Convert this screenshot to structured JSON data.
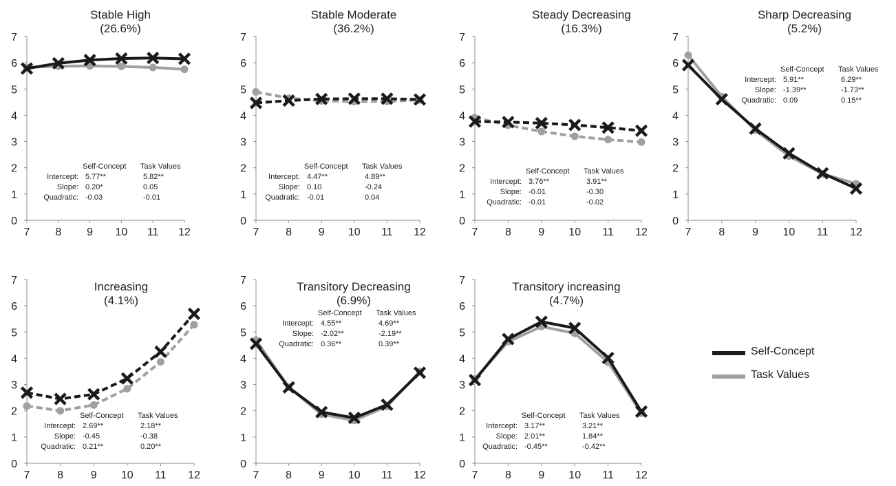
{
  "chart_data": [
    {
      "type": "line",
      "title": "Stable High",
      "subtitle": "(26.6%)",
      "x": [
        7,
        8,
        9,
        10,
        11,
        12
      ],
      "ylim": [
        0,
        7
      ],
      "yticks": [
        0,
        1,
        2,
        3,
        4,
        5,
        6,
        7
      ],
      "series": [
        {
          "name": "Self-Concept",
          "values": [
            5.78,
            5.98,
            6.1,
            6.16,
            6.18,
            6.15
          ]
        },
        {
          "name": "Task Values",
          "values": [
            5.82,
            5.87,
            5.88,
            5.86,
            5.82,
            5.75
          ]
        }
      ],
      "estimates_table": {
        "headers": [
          "Self-Concept",
          "Task Values"
        ],
        "rows": [
          {
            "label": "Intercept:",
            "values": [
              "5.77**",
              "5.82**"
            ]
          },
          {
            "label": "Slope:",
            "values": [
              "0.20*",
              "0.05"
            ]
          },
          {
            "label": "Quadratic:",
            "values": [
              "-0.03",
              "-0.01"
            ]
          }
        ]
      }
    },
    {
      "type": "line",
      "title": "Stable Moderate",
      "subtitle": "(36.2%)",
      "x": [
        7,
        8,
        9,
        10,
        11,
        12
      ],
      "ylim": [
        0,
        7
      ],
      "yticks": [
        0,
        1,
        2,
        3,
        4,
        5,
        6,
        7
      ],
      "series": [
        {
          "name": "Self-Concept",
          "values": [
            4.47,
            4.56,
            4.62,
            4.63,
            4.63,
            4.6
          ]
        },
        {
          "name": "Task Values",
          "values": [
            4.89,
            4.65,
            4.55,
            4.52,
            4.53,
            4.58
          ]
        }
      ],
      "estimates_table": {
        "headers": [
          "Self-Concept",
          "Task Values"
        ],
        "rows": [
          {
            "label": "Intercept:",
            "values": [
              "4.47**",
              "4.89**"
            ]
          },
          {
            "label": "Slope:",
            "values": [
              "0.10",
              "-0.24"
            ]
          },
          {
            "label": "Quadratic:",
            "values": [
              "-0.01",
              "0.04"
            ]
          }
        ]
      }
    },
    {
      "type": "line",
      "title": "Steady Decreasing",
      "subtitle": "(16.3%)",
      "x": [
        7,
        8,
        9,
        10,
        11,
        12
      ],
      "ylim": [
        0,
        7
      ],
      "yticks": [
        0,
        1,
        2,
        3,
        4,
        5,
        6,
        7
      ],
      "series": [
        {
          "name": "Self-Concept",
          "values": [
            3.76,
            3.74,
            3.7,
            3.63,
            3.53,
            3.41
          ]
        },
        {
          "name": "Task Values",
          "values": [
            3.91,
            3.62,
            3.38,
            3.2,
            3.07,
            2.98
          ]
        }
      ],
      "estimates_table": {
        "headers": [
          "Self-Concept",
          "Task Values"
        ],
        "rows": [
          {
            "label": "Intercept:",
            "values": [
              "3.76**",
              "3.91**"
            ]
          },
          {
            "label": "Slope:",
            "values": [
              "-0.01",
              "-0.30"
            ]
          },
          {
            "label": "Quadratic:",
            "values": [
              "-0.01",
              "-0.02"
            ]
          }
        ]
      }
    },
    {
      "type": "line",
      "title": "Sharp Decreasing",
      "subtitle": "(5.2%)",
      "x": [
        7,
        8,
        9,
        10,
        11,
        12
      ],
      "ylim": [
        0,
        7
      ],
      "yticks": [
        0,
        1,
        2,
        3,
        4,
        5,
        6,
        7
      ],
      "series": [
        {
          "name": "Self-Concept",
          "values": [
            5.91,
            4.61,
            3.49,
            2.55,
            1.79,
            1.21
          ]
        },
        {
          "name": "Task Values",
          "values": [
            6.29,
            4.71,
            3.43,
            2.45,
            1.77,
            1.39
          ]
        }
      ],
      "estimates_table": {
        "headers": [
          "Self-Concept",
          "Task Values"
        ],
        "rows": [
          {
            "label": "Intercept:",
            "values": [
              "5.91**",
              "6.29**"
            ]
          },
          {
            "label": "Slope:",
            "values": [
              "-1.39**",
              "-1.73**"
            ]
          },
          {
            "label": "Quadratic:",
            "values": [
              "0.09",
              "0.15**"
            ]
          }
        ]
      }
    },
    {
      "type": "line",
      "title": "Increasing",
      "subtitle": "(4.1%)",
      "x": [
        7,
        8,
        9,
        10,
        11,
        12
      ],
      "ylim": [
        0,
        7
      ],
      "yticks": [
        0,
        1,
        2,
        3,
        4,
        5,
        6,
        7
      ],
      "series": [
        {
          "name": "Self-Concept",
          "values": [
            2.69,
            2.45,
            2.63,
            3.23,
            4.25,
            5.69
          ]
        },
        {
          "name": "Task Values",
          "values": [
            2.18,
            2.0,
            2.22,
            2.84,
            3.86,
            5.28
          ]
        }
      ],
      "estimates_table": {
        "headers": [
          "Self-Concept",
          "Task Values"
        ],
        "rows": [
          {
            "label": "Intercept:",
            "values": [
              "2.69**",
              "2.18**"
            ]
          },
          {
            "label": "Slope:",
            "values": [
              "-0.45",
              "-0.38"
            ]
          },
          {
            "label": "Quadratic:",
            "values": [
              "0.21**",
              "0.20**"
            ]
          }
        ]
      }
    },
    {
      "type": "line",
      "title": "Transitory Decreasing",
      "subtitle": "(6.9%)",
      "x": [
        7,
        8,
        9,
        10,
        11,
        12
      ],
      "ylim": [
        0,
        7
      ],
      "yticks": [
        0,
        1,
        2,
        3,
        4,
        5,
        6,
        7
      ],
      "series": [
        {
          "name": "Self-Concept",
          "values": [
            4.55,
            2.89,
            1.95,
            1.73,
            2.23,
            3.45
          ]
        },
        {
          "name": "Task Values",
          "values": [
            4.69,
            2.89,
            1.87,
            1.63,
            2.17,
            3.49
          ]
        }
      ],
      "estimates_table": {
        "headers": [
          "Self-Concept",
          "Task Values"
        ],
        "rows": [
          {
            "label": "Intercept:",
            "values": [
              "4.55**",
              "4.69**"
            ]
          },
          {
            "label": "Slope:",
            "values": [
              "-2.02**",
              "-2.19**"
            ]
          },
          {
            "label": "Quadratic:",
            "values": [
              "0.36**",
              "0.39**"
            ]
          }
        ]
      }
    },
    {
      "type": "line",
      "title": "Transitory increasing",
      "subtitle": "(4.7%)",
      "x": [
        7,
        8,
        9,
        10,
        11,
        12
      ],
      "ylim": [
        0,
        7
      ],
      "yticks": [
        0,
        1,
        2,
        3,
        4,
        5,
        6,
        7
      ],
      "series": [
        {
          "name": "Self-Concept",
          "values": [
            3.17,
            4.73,
            5.39,
            5.15,
            4.01,
            1.97
          ]
        },
        {
          "name": "Task Values",
          "values": [
            3.21,
            4.63,
            5.21,
            4.95,
            3.85,
            1.91
          ]
        }
      ],
      "estimates_table": {
        "headers": [
          "Self-Concept",
          "Task Values"
        ],
        "rows": [
          {
            "label": "Intercept:",
            "values": [
              "3.17**",
              "3.21**"
            ]
          },
          {
            "label": "Slope:",
            "values": [
              "2.01**",
              "1.84**"
            ]
          },
          {
            "label": "Quadratic:",
            "values": [
              "-0.45**",
              "-0.42**"
            ]
          }
        ]
      }
    }
  ],
  "legend": {
    "items": [
      {
        "label": "Self-Concept",
        "color": "#1a1a1a"
      },
      {
        "label": "Task Values",
        "color": "#a0a0a0"
      }
    ]
  },
  "colors": {
    "self_concept": "#1a1a1a",
    "task_values": "#a0a0a0",
    "axis": "#8c8c8c",
    "text": "#222222"
  }
}
